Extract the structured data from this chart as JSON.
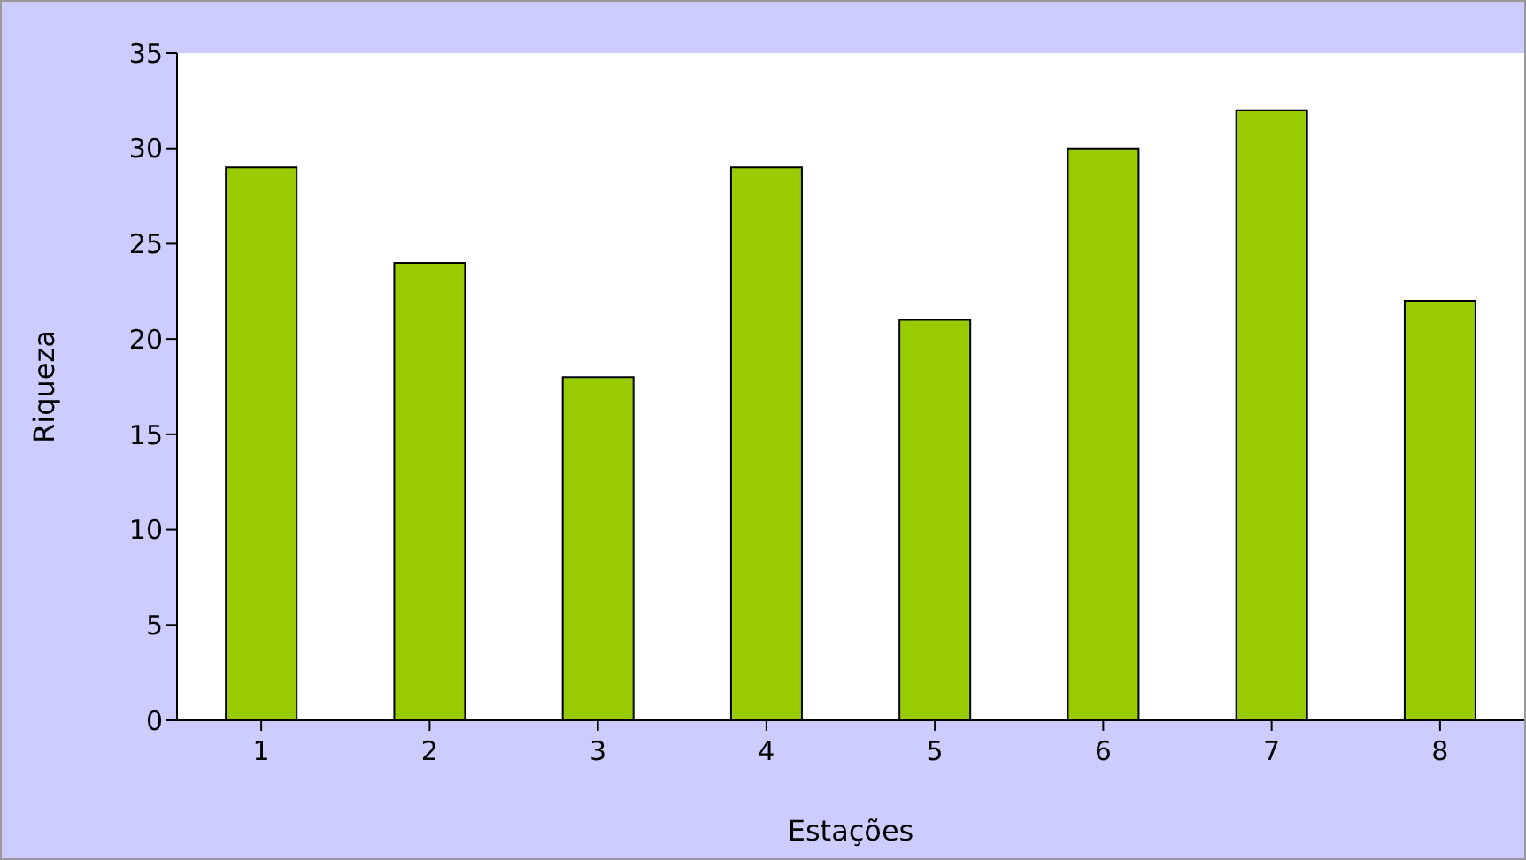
{
  "chart_data": {
    "type": "bar",
    "xlabel": "Estações",
    "ylabel": "Riqueza",
    "categories": [
      "1",
      "2",
      "3",
      "4",
      "5",
      "6",
      "7",
      "8"
    ],
    "values": [
      29,
      24,
      18,
      29,
      21,
      30,
      32,
      22
    ],
    "color": "#99cc00",
    "ylim": [
      0,
      35
    ],
    "yticks": [
      0,
      5,
      10,
      15,
      20,
      25,
      30,
      35
    ],
    "grid": false,
    "legend": false
  }
}
